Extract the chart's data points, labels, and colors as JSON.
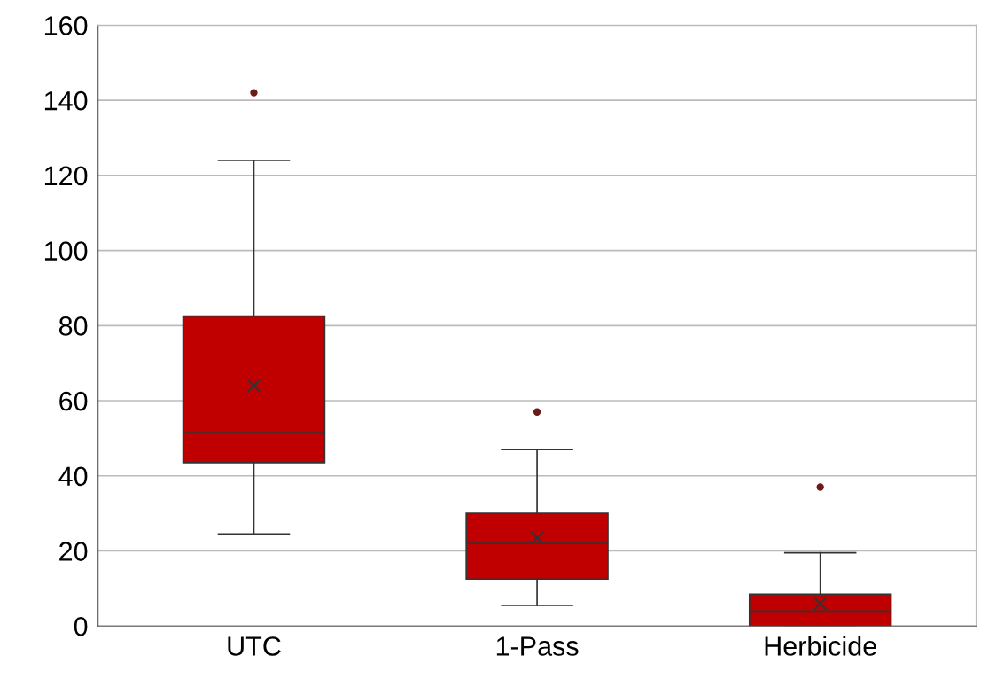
{
  "chart_data": {
    "type": "box",
    "categories": [
      "UTC",
      "1-Pass",
      "Herbicide"
    ],
    "color": "#c00000",
    "boxes": [
      {
        "low": 24.5,
        "q1": 43.5,
        "median": 51.5,
        "q3": 82.5,
        "high": 124,
        "mean": 64,
        "outliers": [
          142
        ]
      },
      {
        "low": 5.5,
        "q1": 12.5,
        "median": 22,
        "q3": 30,
        "high": 47,
        "mean": 23.5,
        "outliers": [
          57
        ]
      },
      {
        "low": 0,
        "q1": 0,
        "median": 4,
        "q3": 8.5,
        "high": 19.5,
        "mean": 6,
        "outliers": [
          37
        ]
      }
    ],
    "ylim": [
      0,
      160
    ],
    "yticks": [
      0,
      20,
      40,
      60,
      80,
      100,
      120,
      140,
      160
    ],
    "grid": "y"
  }
}
